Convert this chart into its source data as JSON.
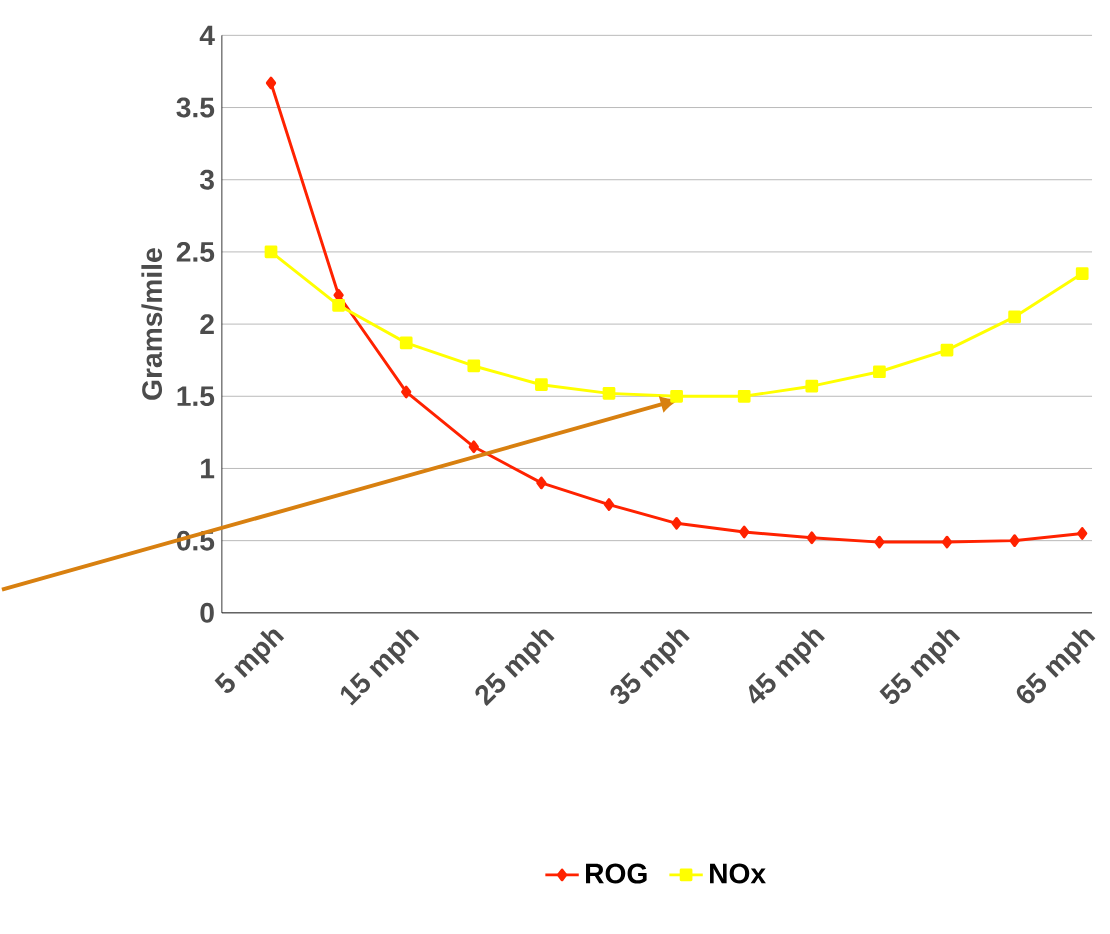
{
  "chart_data": {
    "type": "line",
    "ylabel": "Grams/mile",
    "categories": [
      "5 mph",
      null,
      "15 mph",
      null,
      "25 mph",
      null,
      "35 mph",
      null,
      "45 mph",
      null,
      "55 mph",
      null,
      "65 mph"
    ],
    "series": [
      {
        "name": "ROG",
        "color": "#ff2200",
        "marker": "diamond",
        "values": [
          3.67,
          2.2,
          1.53,
          1.15,
          0.9,
          0.75,
          0.62,
          0.56,
          0.52,
          0.49,
          0.49,
          0.5,
          0.55
        ]
      },
      {
        "name": "NOx",
        "color": "#ffff00",
        "marker": "square",
        "values": [
          2.5,
          2.13,
          1.87,
          1.71,
          1.58,
          1.52,
          1.5,
          1.5,
          1.57,
          1.67,
          1.82,
          2.05,
          2.35
        ]
      }
    ],
    "ylim": [
      0,
      4
    ],
    "yticks": [
      0,
      0.5,
      1,
      1.5,
      2,
      2.5,
      3,
      3.5,
      4
    ],
    "grid": "y",
    "legend": "bottom"
  }
}
